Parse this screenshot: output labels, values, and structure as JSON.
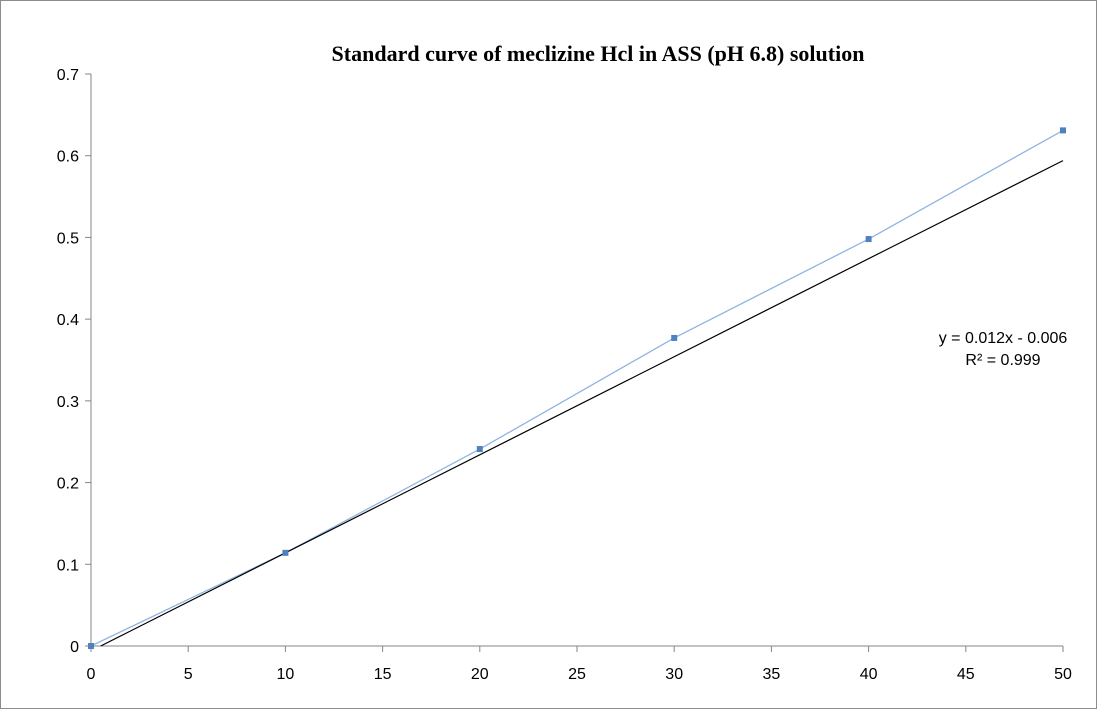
{
  "chart_data": {
    "type": "scatter",
    "title": "Standard curve of meclizine Hcl in ASS (pH 6.8) solution",
    "xlabel": "",
    "ylabel": "",
    "xlim": [
      0,
      50
    ],
    "ylim": [
      0,
      0.7
    ],
    "x_ticks": [
      "0",
      "5",
      "10",
      "15",
      "20",
      "25",
      "30",
      "35",
      "40",
      "45",
      "50"
    ],
    "y_ticks": [
      "0",
      "0.1",
      "0.2",
      "0.3",
      "0.4",
      "0.5",
      "0.6",
      "0.7"
    ],
    "grid": false,
    "legend": "none",
    "series": [
      {
        "x": [
          0,
          10,
          20,
          30,
          40,
          50
        ],
        "y": [
          0.0,
          0.114,
          0.241,
          0.377,
          0.498,
          0.631
        ],
        "color": "#4f81bd",
        "line_color": "#8fb4e3",
        "marker": "square"
      }
    ],
    "trendline": {
      "type": "linear",
      "slope": 0.012,
      "intercept": -0.006,
      "color": "#000000"
    },
    "annotations": {
      "equation": "y = 0.012x - 0.006",
      "r_squared": "R² = 0.999"
    }
  }
}
